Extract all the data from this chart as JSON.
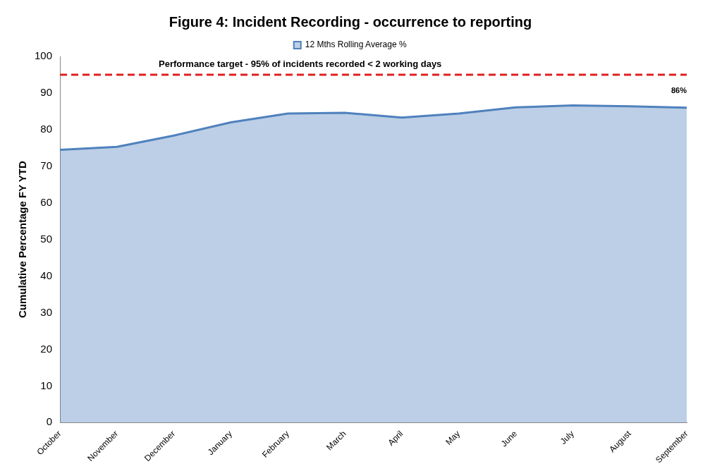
{
  "chart_data": {
    "type": "area",
    "title": "Figure 4: Incident Recording - occurrence to reporting",
    "ylabel": "Cumulative Percentage FY YTD",
    "categories": [
      "October",
      "November",
      "December",
      "January",
      "February",
      "March",
      "April",
      "May",
      "June",
      "July",
      "August",
      "September"
    ],
    "series": [
      {
        "name": "12 Mths Rolling Average %",
        "color": "#4f81bd",
        "values": [
          74.5,
          75.3,
          78.4,
          82,
          84.4,
          84.6,
          83.3,
          84.4,
          86.1,
          86.6,
          86.4,
          86
        ],
        "value_labels": [
          null,
          null,
          null,
          null,
          null,
          null,
          null,
          null,
          null,
          null,
          null,
          "86%"
        ]
      }
    ],
    "ylim": [
      0,
      100
    ],
    "yticks": [
      0,
      10,
      20,
      30,
      40,
      50,
      60,
      70,
      80,
      90,
      100
    ],
    "grid": false,
    "legend": "top",
    "ref_lines": [
      {
        "axis": "y",
        "value": 95,
        "label": "Performance target - 95% of incidents recorded < 2 working days",
        "color": "#e02020",
        "line_style": "dashed"
      }
    ]
  }
}
